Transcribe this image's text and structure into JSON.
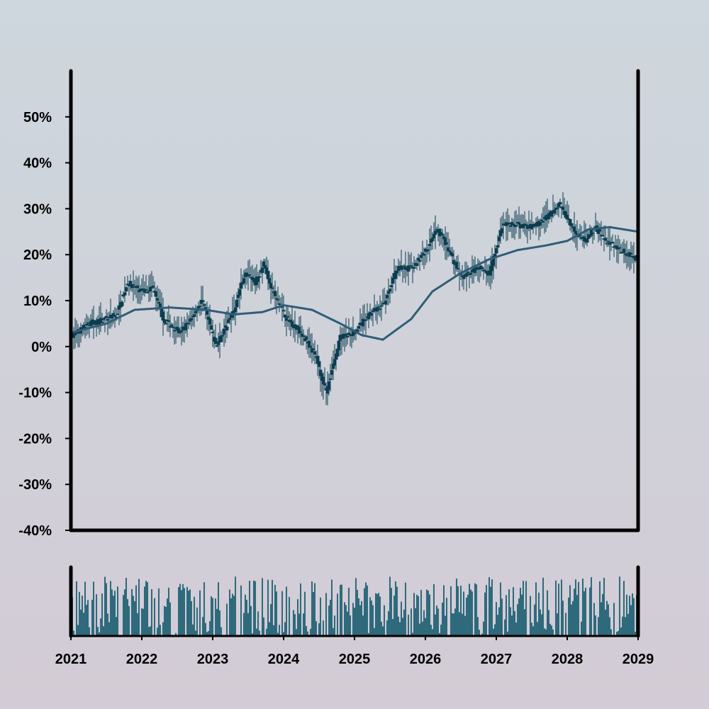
{
  "chart_data": {
    "type": "candlestick",
    "x_ticks": [
      "2021",
      "2022",
      "2023",
      "2024",
      "2025",
      "2026",
      "2027",
      "2028",
      "2029"
    ],
    "xlim": [
      2021,
      2029
    ],
    "y_ticks": [
      "50%",
      "40%",
      "30%",
      "20%",
      "10%",
      "0%",
      "-10%",
      "-20%",
      "-30%",
      "-40%"
    ],
    "ylim": [
      -40,
      60
    ],
    "grid": false,
    "colors": {
      "candle": "#0b3d4f",
      "moving_average": "#2f5d78",
      "volume_bar": "#2e6a7c",
      "axes": "#000000"
    },
    "price_path": [
      [
        2021.0,
        2
      ],
      [
        2021.25,
        5
      ],
      [
        2021.5,
        6
      ],
      [
        2021.65,
        7
      ],
      [
        2021.8,
        14
      ],
      [
        2022.0,
        12
      ],
      [
        2022.15,
        13
      ],
      [
        2022.3,
        6
      ],
      [
        2022.55,
        3
      ],
      [
        2022.85,
        10
      ],
      [
        2023.05,
        0
      ],
      [
        2023.3,
        8
      ],
      [
        2023.45,
        16
      ],
      [
        2023.6,
        14
      ],
      [
        2023.72,
        18
      ],
      [
        2023.85,
        12
      ],
      [
        2024.05,
        6
      ],
      [
        2024.25,
        3
      ],
      [
        2024.45,
        -2
      ],
      [
        2024.6,
        -10
      ],
      [
        2024.8,
        2
      ],
      [
        2025.0,
        3
      ],
      [
        2025.2,
        7
      ],
      [
        2025.4,
        9
      ],
      [
        2025.6,
        17
      ],
      [
        2025.8,
        17
      ],
      [
        2026.05,
        22
      ],
      [
        2026.15,
        26
      ],
      [
        2026.3,
        22
      ],
      [
        2026.5,
        15
      ],
      [
        2026.75,
        17
      ],
      [
        2026.9,
        16
      ],
      [
        2027.1,
        27
      ],
      [
        2027.5,
        26
      ],
      [
        2027.7,
        28
      ],
      [
        2027.9,
        31
      ],
      [
        2028.1,
        25
      ],
      [
        2028.25,
        23
      ],
      [
        2028.4,
        26
      ],
      [
        2028.55,
        23
      ],
      [
        2028.75,
        21
      ],
      [
        2029.0,
        19
      ]
    ],
    "moving_average": [
      [
        2021.0,
        3
      ],
      [
        2021.5,
        5
      ],
      [
        2021.9,
        8
      ],
      [
        2022.4,
        8.5
      ],
      [
        2022.9,
        8
      ],
      [
        2023.3,
        7
      ],
      [
        2023.7,
        7.5
      ],
      [
        2024.0,
        9
      ],
      [
        2024.4,
        8
      ],
      [
        2024.8,
        5
      ],
      [
        2025.1,
        2.5
      ],
      [
        2025.4,
        1.5
      ],
      [
        2025.8,
        6
      ],
      [
        2026.1,
        12
      ],
      [
        2026.5,
        16
      ],
      [
        2026.9,
        19
      ],
      [
        2027.3,
        21
      ],
      [
        2027.7,
        22
      ],
      [
        2028.0,
        23
      ],
      [
        2028.3,
        25.5
      ],
      [
        2028.6,
        26
      ],
      [
        2029.0,
        25
      ]
    ],
    "volume_scale": [
      0,
      12
    ]
  }
}
